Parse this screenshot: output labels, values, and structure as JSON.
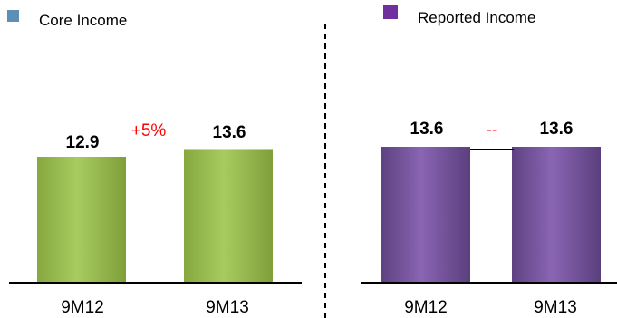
{
  "chart_data": [
    {
      "type": "bar",
      "legend": "Core Income",
      "legend_color": "#5b8fb4",
      "bar_color": "#9bbb59",
      "categories": [
        "9M12",
        "9M13"
      ],
      "values": [
        12.9,
        13.6
      ],
      "value_labels": [
        "12.9",
        "13.6"
      ],
      "change_label": "+5%",
      "legend_position": "top-left"
    },
    {
      "type": "bar",
      "legend": "Reported Income",
      "legend_color": "#7030a0",
      "bar_color": "#7f5aa0",
      "categories": [
        "9M12",
        "9M13"
      ],
      "values": [
        13.6,
        13.6
      ],
      "value_labels": [
        "13.6",
        "13.6"
      ],
      "change_label": "--",
      "legend_position": "top-left"
    }
  ]
}
